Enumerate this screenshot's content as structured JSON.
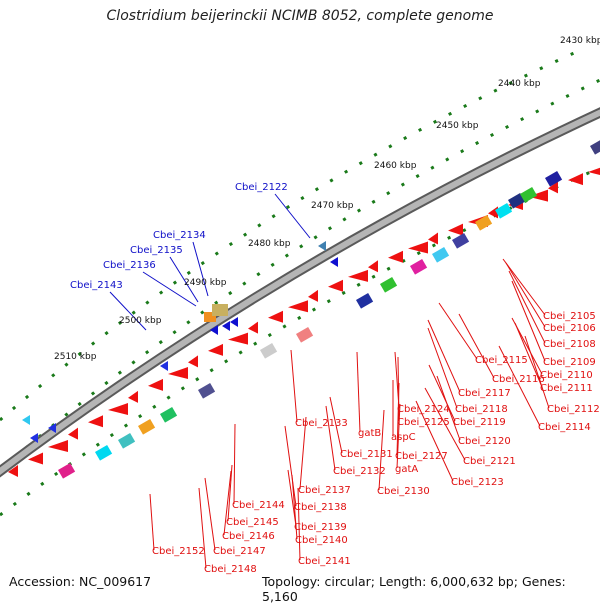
{
  "title": "Clostridium beijerinckii NCIMB 8052, complete genome",
  "footer": {
    "accession_label": "Accession:",
    "accession": "NC_009617",
    "topology_label": "Topology:",
    "topology": "circular",
    "length_label": "Length:",
    "length": "6,000,632 bp",
    "genes_label": "Genes:",
    "genes": "5,160"
  },
  "scale_ticks": [
    {
      "label": "2430 kbp"
    },
    {
      "label": "2440 kbp"
    },
    {
      "label": "2450 kbp"
    },
    {
      "label": "2460 kbp"
    },
    {
      "label": "2470 kbp"
    },
    {
      "label": "2480 kbp"
    },
    {
      "label": "2490 kbp"
    },
    {
      "label": "2500 kbp"
    },
    {
      "label": "2510 kbp"
    }
  ],
  "colors": {
    "forward_label": "#1010c8",
    "reverse_label": "#e01010",
    "backbone": "#7a7a7a",
    "tick_dots": "#1a7a1a",
    "gene_red": "#ee1111"
  },
  "forward_labels": [
    {
      "text": "Cbei_2122"
    },
    {
      "text": "Cbei_2134"
    },
    {
      "text": "Cbei_2135"
    },
    {
      "text": "Cbei_2136"
    },
    {
      "text": "Cbei_2143"
    }
  ],
  "reverse_labels": [
    {
      "text": "Cbei_2105"
    },
    {
      "text": "Cbei_2106"
    },
    {
      "text": "Cbei_2108"
    },
    {
      "text": "Cbei_2109"
    },
    {
      "text": "Cbei_2110"
    },
    {
      "text": "Cbei_2111"
    },
    {
      "text": "Cbei_2112"
    },
    {
      "text": "Cbei_2114"
    },
    {
      "text": "Cbei_2115"
    },
    {
      "text": "Cbei_2116"
    },
    {
      "text": "Cbei_2117"
    },
    {
      "text": "Cbei_2118"
    },
    {
      "text": "Cbei_2119"
    },
    {
      "text": "Cbei_2120"
    },
    {
      "text": "Cbei_2121"
    },
    {
      "text": "Cbei_2123"
    },
    {
      "text": "Cbei_2124"
    },
    {
      "text": "Cbei_2125"
    },
    {
      "text": "Cbei_2127"
    },
    {
      "text": "Cbei_2130"
    },
    {
      "text": "Cbei_2131"
    },
    {
      "text": "Cbei_2132"
    },
    {
      "text": "Cbei_2133"
    },
    {
      "text": "gatB"
    },
    {
      "text": "aspC"
    },
    {
      "text": "gatA"
    },
    {
      "text": "Cbei_2137"
    },
    {
      "text": "Cbei_2138"
    },
    {
      "text": "Cbei_2139"
    },
    {
      "text": "Cbei_2140"
    },
    {
      "text": "Cbei_2141"
    },
    {
      "text": "Cbei_2144"
    },
    {
      "text": "Cbei_2145"
    },
    {
      "text": "Cbei_2146"
    },
    {
      "text": "Cbei_2147"
    },
    {
      "text": "Cbei_2148"
    },
    {
      "text": "Cbei_2152"
    }
  ]
}
